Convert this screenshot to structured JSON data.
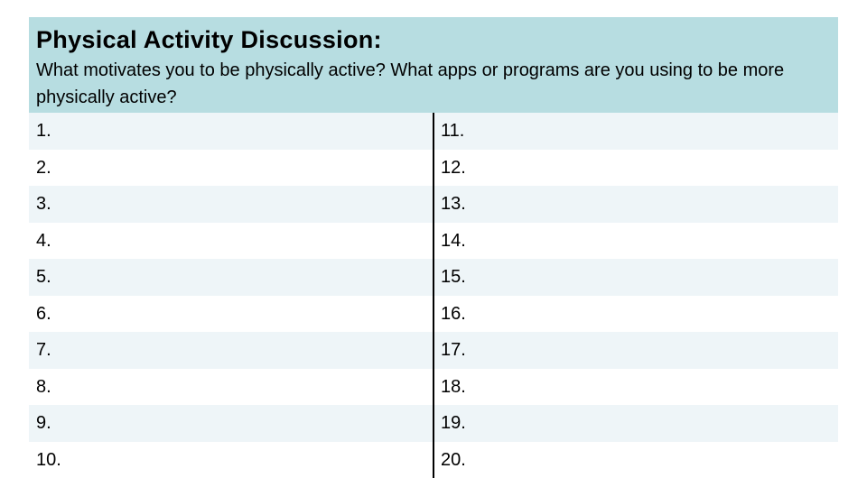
{
  "header": {
    "title": "Physical Activity Discussion:",
    "prompt": "What motivates you to be physically active? What apps or programs are you using to be more physically active?"
  },
  "rows": [
    {
      "left": "1.",
      "right": "11."
    },
    {
      "left": "2.",
      "right": "12."
    },
    {
      "left": "3.",
      "right": "13."
    },
    {
      "left": "4.",
      "right": "14."
    },
    {
      "left": "5.",
      "right": "15."
    },
    {
      "left": "6.",
      "right": "16."
    },
    {
      "left": "7.",
      "right": "17."
    },
    {
      "left": "8.",
      "right": "18."
    },
    {
      "left": "9.",
      "right": "19."
    },
    {
      "left": "10.",
      "right": "20."
    }
  ],
  "colors": {
    "header_bg": "#b7dde1",
    "row_shaded": "#eef5f8",
    "row_plain": "#ffffff",
    "divider": "#000000"
  }
}
